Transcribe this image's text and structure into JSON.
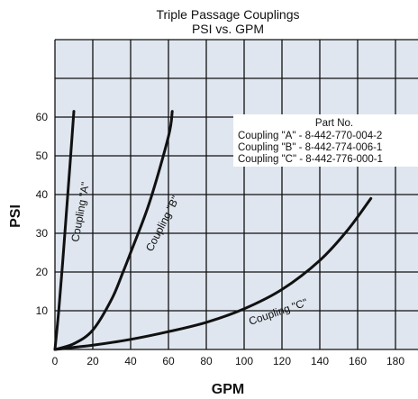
{
  "chart_data": {
    "type": "line",
    "title": "Triple Passage Couplings",
    "subtitle": "PSI vs. GPM",
    "xlabel": "GPM",
    "ylabel": "PSI",
    "xlim": [
      0,
      180
    ],
    "ylim": [
      0,
      80
    ],
    "x_ticks": [
      "0",
      "20",
      "40",
      "60",
      "80",
      "100",
      "120",
      "140",
      "160",
      "180"
    ],
    "y_ticks": [
      "10",
      "20",
      "30",
      "40",
      "50",
      "60"
    ],
    "grid": true,
    "background_color": "#dfe6ef",
    "line_color": "#111111",
    "series": [
      {
        "name": "Coupling \"A\"",
        "x": [
          0,
          2,
          4,
          6,
          8,
          10
        ],
        "y": [
          0,
          10,
          22,
          35,
          48,
          61.5
        ]
      },
      {
        "name": "Coupling \"B\"",
        "x": [
          0,
          10,
          20,
          30,
          36,
          40,
          50,
          60,
          62
        ],
        "y": [
          0,
          1.5,
          5,
          13,
          20,
          25,
          38,
          55,
          61.5
        ]
      },
      {
        "name": "Coupling \"C\"",
        "x": [
          0,
          20,
          40,
          60,
          80,
          100,
          120,
          140,
          155,
          167
        ],
        "y": [
          0,
          1.1,
          2.6,
          4.6,
          7,
          10.5,
          15.5,
          23,
          31,
          39
        ]
      }
    ],
    "legend_box": {
      "title": "Part No.",
      "rows": [
        "Coupling \"A\" - 8-442-770-004-2",
        "Coupling \"B\" - 8-442-774-006-1",
        "Coupling \"C\" - 8-442-776-000-1"
      ]
    }
  }
}
